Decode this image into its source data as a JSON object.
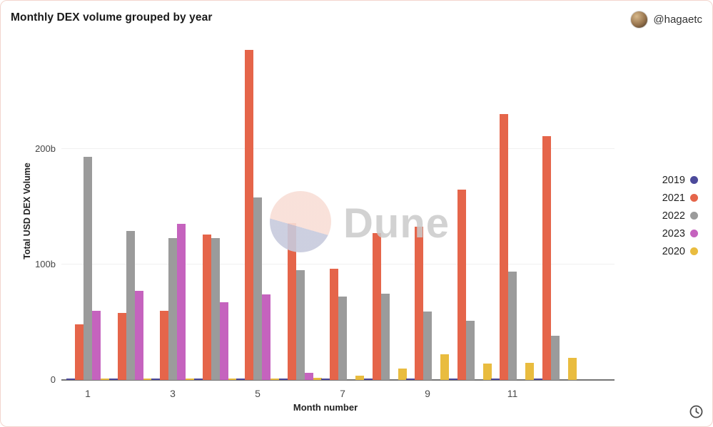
{
  "header": {
    "title": "Monthly DEX volume grouped by year",
    "author_handle": "@hagaetc"
  },
  "watermark": {
    "text": "Dune"
  },
  "colors": {
    "card_border": "#f3d5cd",
    "gridline": "#f0f0f0",
    "axis_line": "#757575",
    "watermark_pink": "#f8ded6",
    "watermark_lavender": "#c7cadd",
    "watermark_text": "#cbcbcb"
  },
  "chart_data": {
    "type": "bar",
    "title": "Monthly DEX volume grouped by year",
    "xlabel": "Month number",
    "ylabel": "Total USD DEX Volume",
    "unit": "billions USD",
    "grid": true,
    "legend_position": "right",
    "months": [
      1,
      2,
      3,
      4,
      5,
      6,
      7,
      8,
      9,
      10,
      11,
      12
    ],
    "x_ticks": [
      1,
      3,
      5,
      7,
      9,
      11
    ],
    "y_ticks": [
      {
        "value": 0,
        "label": "0"
      },
      {
        "value": 100,
        "label": "100b"
      },
      {
        "value": 200,
        "label": "200b"
      }
    ],
    "ylim": [
      0,
      294
    ],
    "legend_order": [
      "2019",
      "2021",
      "2022",
      "2023",
      "2020"
    ],
    "series": [
      {
        "name": "2019",
        "color": "#4c4a9b",
        "values": [
          1,
          1,
          1,
          1,
          1,
          1,
          1,
          1,
          1,
          1,
          1,
          1
        ]
      },
      {
        "name": "2021",
        "color": "#e5654a",
        "values": [
          48,
          58,
          60,
          126,
          286,
          136,
          96,
          127,
          133,
          165,
          230,
          211
        ]
      },
      {
        "name": "2022",
        "color": "#9b9b9b",
        "values": [
          193,
          129,
          123,
          123,
          158,
          95,
          72,
          75,
          59,
          51,
          94,
          38
        ]
      },
      {
        "name": "2023",
        "color": "#c563be",
        "values": [
          60,
          77,
          135,
          67,
          74,
          6,
          null,
          null,
          null,
          null,
          null,
          null
        ]
      },
      {
        "name": "2020",
        "color": "#e9bc3f",
        "values": [
          1,
          1,
          1,
          1,
          1,
          2,
          4,
          10,
          22,
          14,
          15,
          19
        ]
      }
    ]
  }
}
